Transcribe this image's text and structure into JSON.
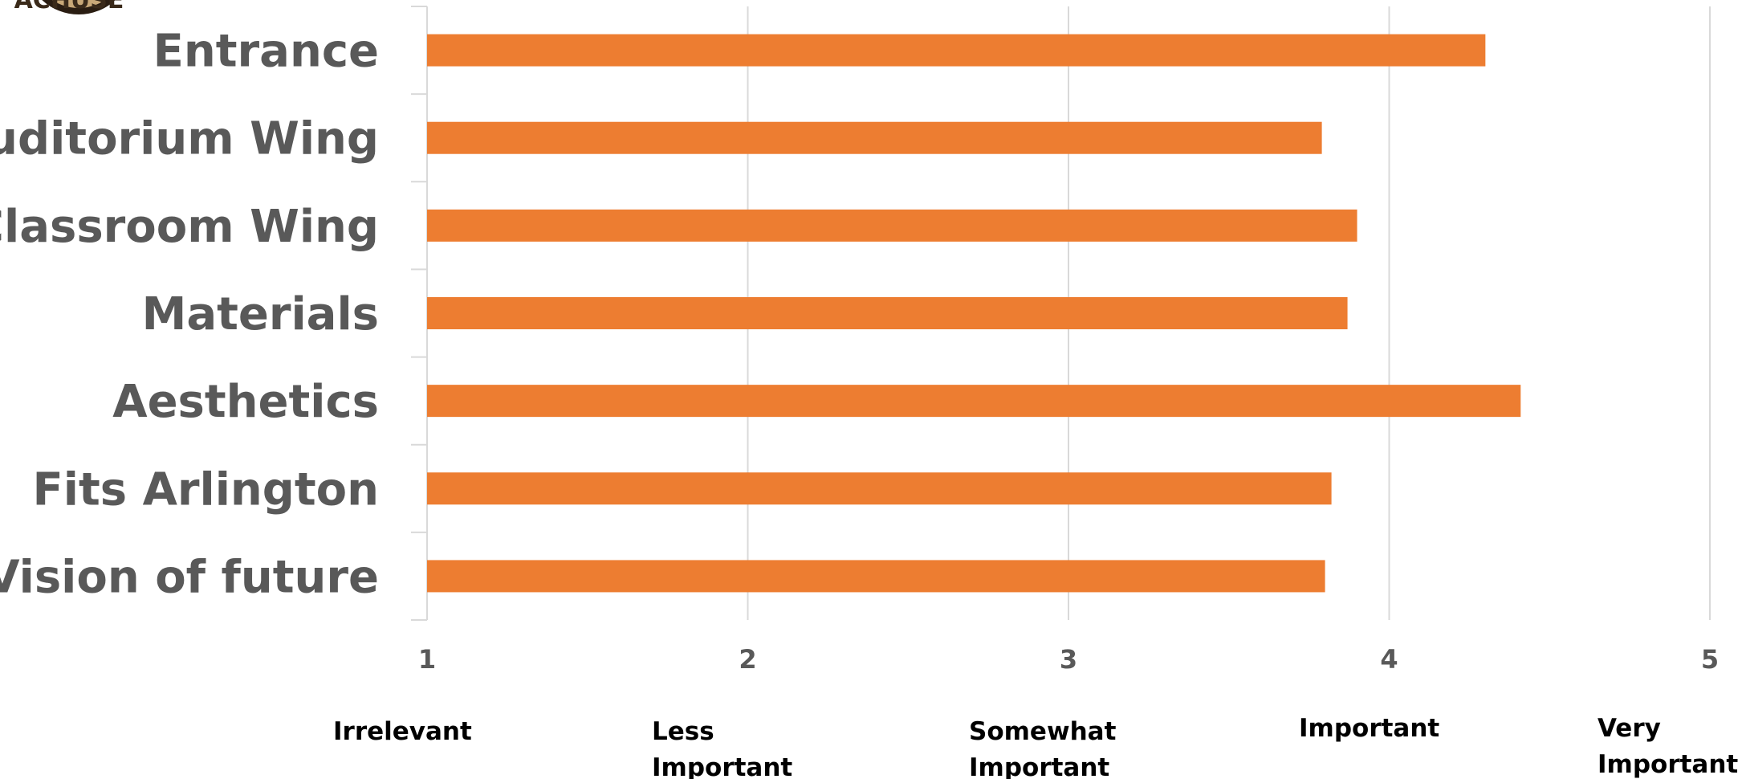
{
  "colors": {
    "bar": "#ED7D31",
    "grid": "#D9D9D9",
    "axis_text": "#595959",
    "desc_text": "#000000",
    "logo_fill": "#c8a878",
    "logo_ring": "#2a1d12"
  },
  "logo": {
    "text": "ACHUSE"
  },
  "chart_data": {
    "type": "bar",
    "orientation": "horizontal",
    "categories": [
      "Entrance",
      "Auditorium Wing",
      "Classroom Wing",
      "Materials",
      "Aesthetics",
      "Fits Arlington",
      "Vision of future"
    ],
    "values": [
      4.3,
      3.79,
      3.9,
      3.87,
      4.41,
      3.82,
      3.8
    ],
    "xlim": [
      1,
      5
    ],
    "x_ticks": [
      "1",
      "2",
      "3",
      "4",
      "5"
    ],
    "x_tick_descriptions": [
      [
        "Irrelevant"
      ],
      [
        "Less",
        "Important"
      ],
      [
        "Somewhat",
        "Important"
      ],
      [
        "Important"
      ],
      [
        "Very",
        "Important"
      ]
    ],
    "title": "",
    "xlabel": "",
    "ylabel": "",
    "grid": true,
    "legend": "none"
  }
}
